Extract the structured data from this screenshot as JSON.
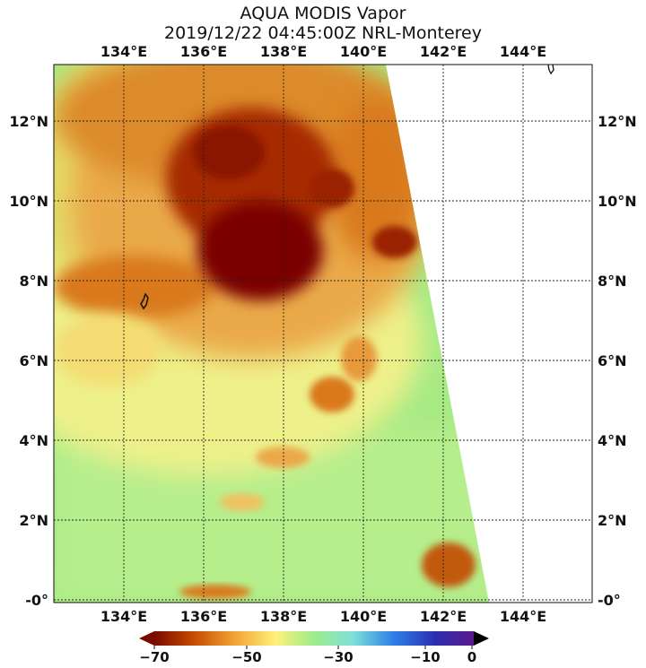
{
  "title": {
    "line1": "AQUA MODIS Vapor",
    "line2": "2019/12/22 04:45:00Z NRL-Monterey"
  },
  "map": {
    "lon_labels": [
      "134°E",
      "136°E",
      "138°E",
      "140°E",
      "142°E",
      "144°E"
    ],
    "lat_labels": [
      "12°N",
      "10°N",
      "8°N",
      "6°N",
      "4°N",
      "2°N",
      "-0°"
    ]
  },
  "colorbar": {
    "labels": [
      "−70",
      "−50",
      "−30",
      "−10",
      "0"
    ],
    "colors": [
      "#7a0a00",
      "#c24a00",
      "#f2a233",
      "#fff07a",
      "#9cec8a",
      "#7fe0d8",
      "#2f7ee6",
      "#2b2fb0",
      "#5a1a8c"
    ]
  },
  "palette": {
    "darkest": "#7a0600",
    "dark": "#a62a00",
    "orange": "#d9791a",
    "light_orange": "#eaa94a",
    "yellow": "#f4dc72",
    "pale": "#eef08a",
    "green": "#a8ea84",
    "light_green": "#c6f09a"
  }
}
